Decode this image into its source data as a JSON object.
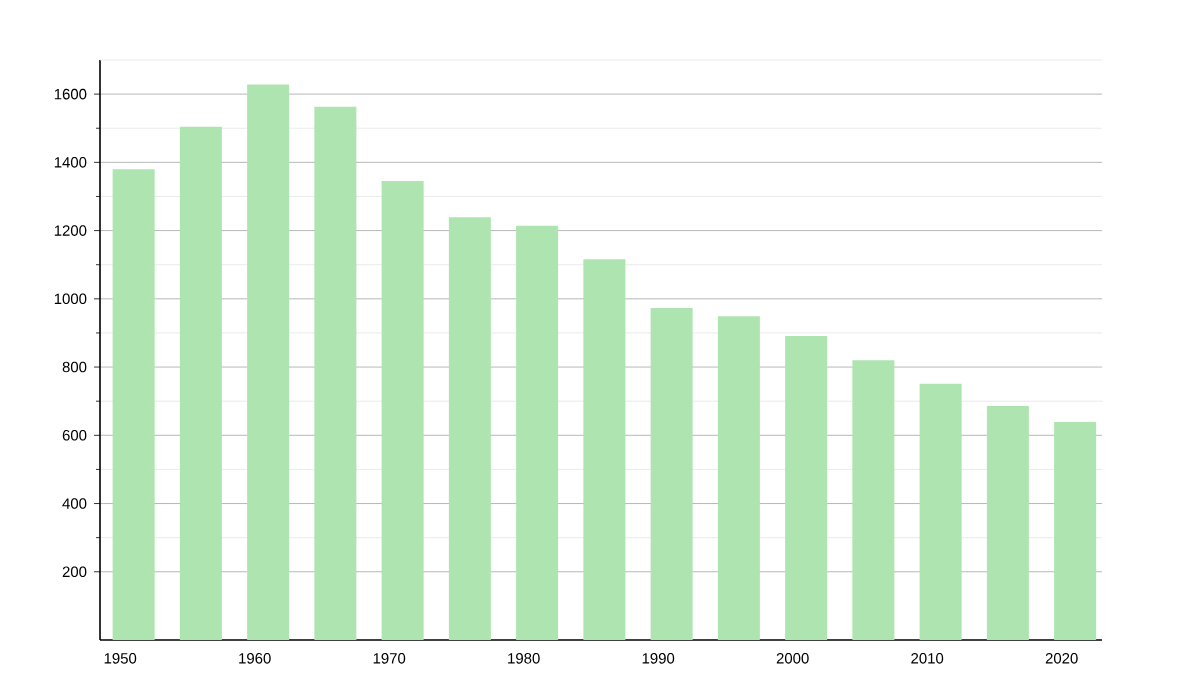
{
  "chart_data": {
    "type": "bar",
    "x": [
      1951,
      1956,
      1961,
      1966,
      1971,
      1976,
      1981,
      1986,
      1991,
      1996,
      2001,
      2006,
      2011,
      2016,
      2021
    ],
    "values": [
      1380,
      1504,
      1628,
      1563,
      1345,
      1239,
      1214,
      1116,
      973,
      949,
      891,
      820,
      751,
      686,
      639
    ],
    "color": "#aee4b0",
    "xlim": [
      1948.5,
      2023
    ],
    "xticks": [
      1950,
      1960,
      1970,
      1980,
      1990,
      2000,
      2010,
      2020
    ],
    "ylim": [
      0,
      1700
    ],
    "yticks": [
      200,
      400,
      600,
      800,
      1000,
      1200,
      1400,
      1600
    ],
    "grid": "y"
  }
}
